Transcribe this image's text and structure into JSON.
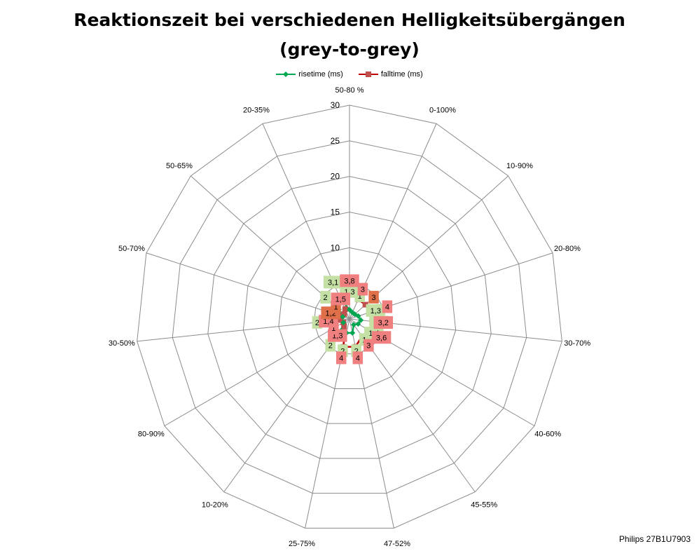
{
  "title_line1": "Reaktionszeit bei verschiedenen Helligkeitsübergängen",
  "title_line2": "(grey-to-grey)",
  "watermark": "Philips 27B1U7903",
  "colors": {
    "rise": "#00a650",
    "fall": "#c00000",
    "fall_marker": "#c0504d",
    "rise_label_bg": "#c4e0a4",
    "fall_label_bg": "#f08080",
    "fall_label_bg_dark": "#e0704a",
    "grid": "#8c8c8c"
  },
  "chart_data": {
    "type": "radar",
    "categories": [
      "50-80 %",
      "0-100%",
      "10-90%",
      "20-80%",
      "30-70%",
      "40-60%",
      "45-55%",
      "47-52%",
      "25-75%",
      "10-20%",
      "80-90%",
      "30-50%",
      "50-70%",
      "50-65%",
      "20-35%"
    ],
    "rlim": [
      0,
      30
    ],
    "ticks": [
      0,
      5,
      10,
      15,
      20,
      25,
      30
    ],
    "grid": true,
    "legend_position": "top",
    "series": [
      {
        "name": "risetime (ms)",
        "values": [
          1.3,
          1,
          1,
          1.3,
          1.6,
          1.4,
          1,
          2,
          2,
          2,
          1,
          2,
          1,
          2,
          3.1
        ]
      },
      {
        "name": "falltime (ms)",
        "values": [
          3.8,
          3,
          3,
          4,
          3.2,
          3.6,
          3,
          4,
          4,
          1.3,
          1,
          1.4,
          1.2,
          1,
          1.5
        ]
      }
    ],
    "rise_labels": [
      "1,3",
      "1",
      "",
      "1,3",
      "1,6",
      "1,4",
      "1",
      "2",
      "2",
      "2",
      "",
      "2",
      "",
      "2",
      "3,1"
    ],
    "fall_labels": [
      "3,8",
      "3",
      "3",
      "4",
      "3,2",
      "3,6",
      "3",
      "4",
      "4",
      "1,3",
      "1",
      "1,4",
      "1,2",
      "1",
      "1,5"
    ]
  }
}
